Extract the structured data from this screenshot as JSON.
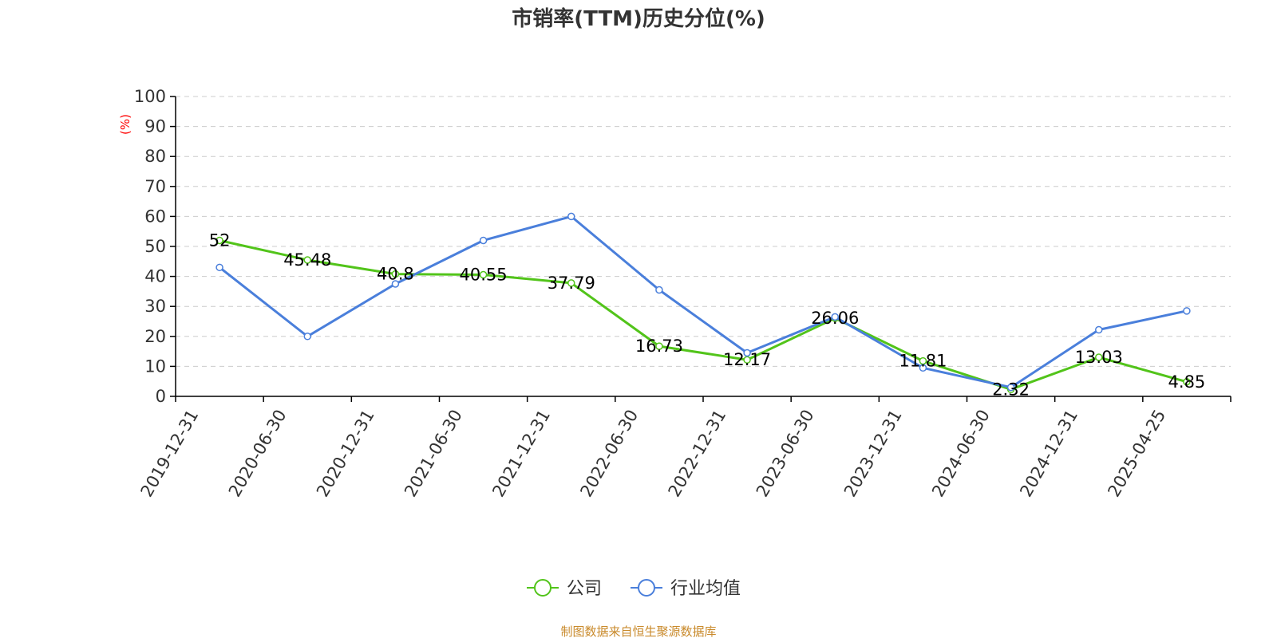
{
  "chart_data": {
    "type": "line",
    "title": "市销率(TTM)历史分位(%)",
    "ylabel": "(%)",
    "xlabel": "",
    "ylim": [
      0,
      100
    ],
    "yticks": [
      0,
      10,
      20,
      30,
      40,
      50,
      60,
      70,
      80,
      90,
      100
    ],
    "grid": true,
    "legend_position": "bottom",
    "categories": [
      "2019-12-31",
      "2020-06-30",
      "2020-12-31",
      "2021-06-30",
      "2021-12-31",
      "2022-06-30",
      "2022-12-31",
      "2023-06-30",
      "2023-12-31",
      "2024-06-30",
      "2024-12-31",
      "2025-04-25"
    ],
    "series": [
      {
        "name": "公司",
        "color": "#52c41a",
        "values": [
          52,
          45.48,
          40.8,
          40.55,
          37.79,
          16.73,
          12.17,
          26.06,
          11.81,
          2.32,
          13.03,
          4.85
        ],
        "labels": [
          "52",
          "45.48",
          "40.8",
          "40.55",
          "37.79",
          "16.73",
          "12.17",
          "26.06",
          "11.81",
          "2.32",
          "13.03",
          "4.85"
        ]
      },
      {
        "name": "行业均值",
        "color": "#4a7fdb",
        "values": [
          43,
          20,
          37.5,
          52,
          60,
          35.5,
          14.5,
          26.5,
          9.5,
          3,
          22.2,
          28.5
        ]
      }
    ],
    "source": "制图数据来自恒生聚源数据库"
  }
}
